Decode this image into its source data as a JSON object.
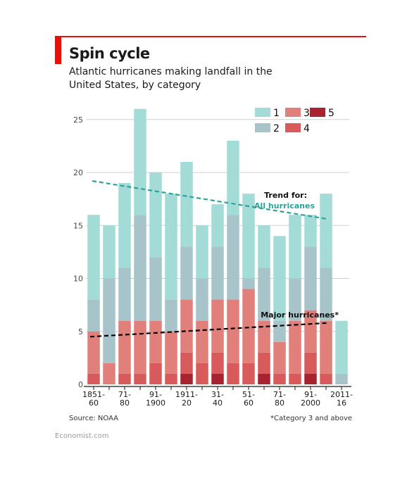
{
  "header": {
    "title": "Spin cycle",
    "subtitle": "Atlantic hurricanes making landfall in the United States, by category"
  },
  "footer": {
    "source": "Source: NOAA",
    "footnote": "*Category 3 and above",
    "brand": "Economist.com"
  },
  "colors": {
    "cat1": "#a3dbd7",
    "cat2": "#a6c4c9",
    "cat3": "#e17f7b",
    "cat4": "#d95a5b",
    "cat5": "#a8222f",
    "trend_all": "#2ba39c",
    "trend_major": "#000000",
    "accent": "#e3120b"
  },
  "chart_data": {
    "type": "bar",
    "stacked": true,
    "categories": [
      "1851-60",
      "1861-70",
      "1871-80",
      "1881-90",
      "1891-1900",
      "1901-10",
      "1911-20",
      "1921-30",
      "1931-40",
      "1941-50",
      "1951-60",
      "1961-70",
      "1971-80",
      "1981-90",
      "1991-2000",
      "2001-10",
      "2011-16"
    ],
    "x_tick_labels": [
      {
        "index": 0,
        "lines": [
          "1851-",
          "60"
        ]
      },
      {
        "index": 2,
        "lines": [
          "71-",
          "80"
        ]
      },
      {
        "index": 4,
        "lines": [
          "91-",
          "1900"
        ]
      },
      {
        "index": 6,
        "lines": [
          "1911-",
          "20"
        ]
      },
      {
        "index": 8,
        "lines": [
          "31-",
          "40"
        ]
      },
      {
        "index": 10,
        "lines": [
          "51-",
          "60"
        ]
      },
      {
        "index": 12,
        "lines": [
          "71-",
          "80"
        ]
      },
      {
        "index": 14,
        "lines": [
          "91-",
          "2000"
        ]
      },
      {
        "index": 16,
        "lines": [
          "2011-",
          "16"
        ]
      }
    ],
    "series": [
      {
        "name": "1",
        "values": [
          8,
          5,
          8,
          10,
          8,
          10,
          8,
          5,
          4,
          7,
          8,
          4,
          8,
          6,
          3,
          7,
          5
        ]
      },
      {
        "name": "2",
        "values": [
          3,
          8,
          5,
          10,
          6,
          3,
          5,
          4,
          5,
          8,
          1,
          5,
          2,
          4,
          6,
          5,
          1
        ]
      },
      {
        "name": "3",
        "values": [
          4,
          2,
          5,
          5,
          4,
          4,
          5,
          4,
          5,
          6,
          7,
          3,
          3,
          5,
          4,
          5,
          0
        ]
      },
      {
        "name": "4",
        "values": [
          1,
          0,
          1,
          1,
          2,
          1,
          2,
          2,
          2,
          2,
          2,
          2,
          1,
          1,
          2,
          1,
          0
        ]
      },
      {
        "name": "5",
        "values": [
          0,
          0,
          0,
          0,
          0,
          0,
          1,
          0,
          1,
          0,
          0,
          1,
          0,
          0,
          1,
          0,
          0
        ]
      }
    ],
    "ylim": [
      0,
      27
    ],
    "yticks": [
      0,
      5,
      10,
      15,
      20,
      25
    ],
    "grid": true,
    "legend": {
      "placement": "top-right",
      "items": [
        "1",
        "2",
        "3",
        "4",
        "5"
      ]
    },
    "trend_lines": [
      {
        "label_lines": [
          "Trend for:",
          "All hurricanes"
        ],
        "start": 19.2,
        "end": 15.6,
        "style": "dashed"
      },
      {
        "label_lines": [
          "Major hurricanes*"
        ],
        "start": 4.5,
        "end": 5.8,
        "style": "dashed"
      }
    ]
  }
}
